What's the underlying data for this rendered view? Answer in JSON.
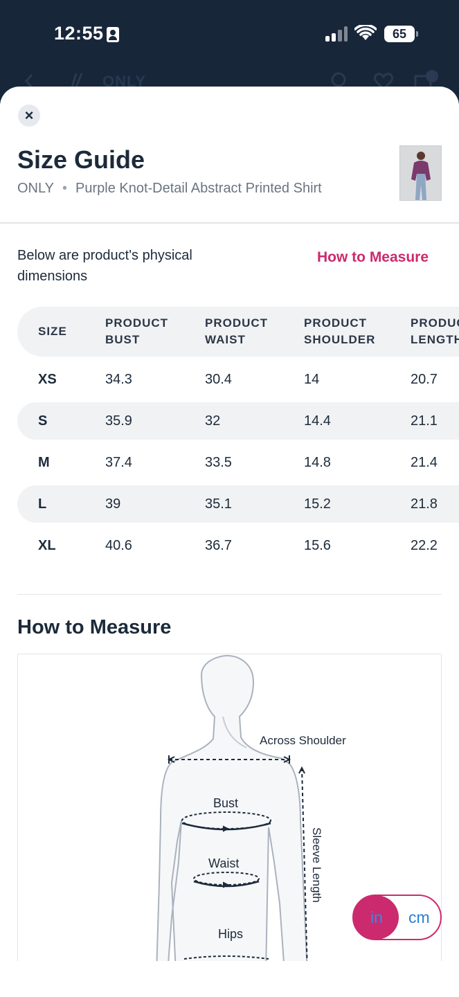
{
  "status_bar": {
    "time": "12:55",
    "battery": "65"
  },
  "app_bar": {
    "brand": "ONLY"
  },
  "sheet": {
    "title": "Size Guide",
    "brand": "ONLY",
    "separator": "•",
    "product_name": "Purple Knot-Detail Abstract Printed Shirt",
    "description": "Below are product's physical dimensions",
    "how_to_measure_link": "How to Measure"
  },
  "table": {
    "headers": [
      [
        "SIZE"
      ],
      [
        "PRODUCT",
        "BUST"
      ],
      [
        "PRODUCT",
        "WAIST"
      ],
      [
        "PRODUCT",
        "SHOULDER"
      ],
      [
        "PRODUCT",
        "LENGTH"
      ]
    ],
    "rows": [
      [
        "XS",
        "34.3",
        "30.4",
        "14",
        "20.7"
      ],
      [
        "S",
        "35.9",
        "32",
        "14.4",
        "21.1"
      ],
      [
        "M",
        "37.4",
        "33.5",
        "14.8",
        "21.4"
      ],
      [
        "L",
        "39",
        "35.1",
        "15.2",
        "21.8"
      ],
      [
        "XL",
        "40.6",
        "36.7",
        "15.6",
        "22.2"
      ]
    ]
  },
  "how_to_measure": {
    "title": "How to Measure",
    "labels": {
      "across_shoulder": "Across Shoulder",
      "bust": "Bust",
      "waist": "Waist",
      "sleeve_length": "Sleeve Length",
      "hips": "Hips"
    }
  },
  "unit_toggle": {
    "in": "in",
    "cm": "cm",
    "selected": "in"
  },
  "colors": {
    "accent": "#cc2a6e",
    "header_bg": "#18263a",
    "link_blue": "#2a7fd4"
  }
}
